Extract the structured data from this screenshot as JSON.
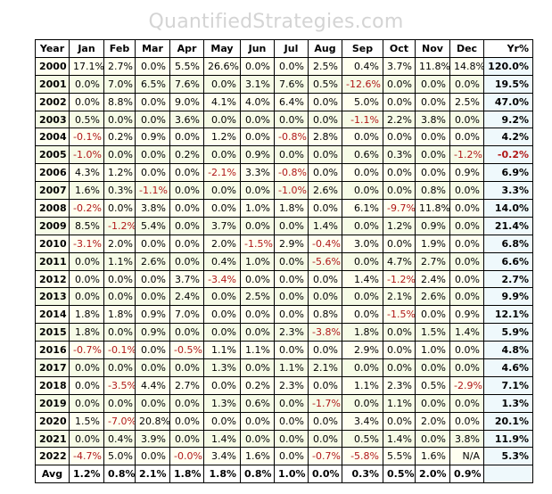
{
  "watermark": "QuantifiedStrategies.com",
  "colors": {
    "negative": "#b01818",
    "row_odd": "#fffff0",
    "row_even": "#f6fbe6",
    "total_col": "#eff9fc"
  },
  "columns": [
    "Year",
    "Jan",
    "Feb",
    "Mar",
    "Apr",
    "May",
    "Jun",
    "Jul",
    "Aug",
    "Sep",
    "Oct",
    "Nov",
    "Dec",
    "Yr%"
  ],
  "rows": [
    {
      "year": "2000",
      "values": [
        "17.1%",
        "2.7%",
        "0.0%",
        "5.5%",
        "26.6%",
        "0.0%",
        "0.0%",
        "2.5%",
        "0.4%",
        "3.7%",
        "11.8%",
        "14.8%",
        "120.0%"
      ]
    },
    {
      "year": "2001",
      "values": [
        "0.0%",
        "7.0%",
        "6.5%",
        "7.6%",
        "0.0%",
        "3.1%",
        "7.6%",
        "0.5%",
        "-12.6%",
        "0.0%",
        "0.0%",
        "0.0%",
        "19.5%"
      ]
    },
    {
      "year": "2002",
      "values": [
        "0.0%",
        "8.8%",
        "0.0%",
        "9.0%",
        "4.1%",
        "4.0%",
        "6.4%",
        "0.0%",
        "5.0%",
        "0.0%",
        "0.0%",
        "2.5%",
        "47.0%"
      ]
    },
    {
      "year": "2003",
      "values": [
        "0.5%",
        "0.0%",
        "0.0%",
        "3.6%",
        "0.0%",
        "0.0%",
        "0.0%",
        "0.0%",
        "-1.1%",
        "2.2%",
        "3.8%",
        "0.0%",
        "9.2%"
      ]
    },
    {
      "year": "2004",
      "values": [
        "-0.1%",
        "0.2%",
        "0.9%",
        "0.0%",
        "1.2%",
        "0.0%",
        "-0.8%",
        "2.8%",
        "0.0%",
        "0.0%",
        "0.0%",
        "0.0%",
        "4.2%"
      ]
    },
    {
      "year": "2005",
      "values": [
        "-1.0%",
        "0.0%",
        "0.0%",
        "0.2%",
        "0.0%",
        "0.9%",
        "0.0%",
        "0.0%",
        "0.6%",
        "0.3%",
        "0.0%",
        "-1.2%",
        "-0.2%"
      ]
    },
    {
      "year": "2006",
      "values": [
        "4.3%",
        "1.2%",
        "0.0%",
        "0.0%",
        "-2.1%",
        "3.3%",
        "-0.8%",
        "0.0%",
        "0.0%",
        "0.0%",
        "0.0%",
        "0.9%",
        "6.9%"
      ]
    },
    {
      "year": "2007",
      "values": [
        "1.6%",
        "0.3%",
        "-1.1%",
        "0.0%",
        "0.0%",
        "0.0%",
        "-1.0%",
        "2.6%",
        "0.0%",
        "0.0%",
        "0.8%",
        "0.0%",
        "3.3%"
      ]
    },
    {
      "year": "2008",
      "values": [
        "-0.2%",
        "0.0%",
        "3.8%",
        "0.0%",
        "0.0%",
        "1.0%",
        "1.8%",
        "0.0%",
        "6.1%",
        "-9.7%",
        "11.8%",
        "0.0%",
        "14.0%"
      ]
    },
    {
      "year": "2009",
      "values": [
        "8.5%",
        "-1.2%",
        "5.4%",
        "0.0%",
        "3.7%",
        "0.0%",
        "0.0%",
        "1.4%",
        "0.0%",
        "1.2%",
        "0.9%",
        "0.0%",
        "21.4%"
      ]
    },
    {
      "year": "2010",
      "values": [
        "-3.1%",
        "2.0%",
        "0.0%",
        "0.0%",
        "2.0%",
        "-1.5%",
        "2.9%",
        "-0.4%",
        "3.0%",
        "0.0%",
        "1.9%",
        "0.0%",
        "6.8%"
      ]
    },
    {
      "year": "2011",
      "values": [
        "0.0%",
        "1.1%",
        "2.6%",
        "0.0%",
        "0.4%",
        "1.0%",
        "0.0%",
        "-5.6%",
        "0.0%",
        "4.7%",
        "2.7%",
        "0.0%",
        "6.6%"
      ]
    },
    {
      "year": "2012",
      "values": [
        "0.0%",
        "0.0%",
        "0.0%",
        "3.7%",
        "-3.4%",
        "0.0%",
        "0.0%",
        "0.0%",
        "1.4%",
        "-1.2%",
        "2.4%",
        "0.0%",
        "2.7%"
      ]
    },
    {
      "year": "2013",
      "values": [
        "0.0%",
        "0.0%",
        "0.0%",
        "2.4%",
        "0.0%",
        "2.5%",
        "0.0%",
        "0.0%",
        "0.0%",
        "2.1%",
        "2.6%",
        "0.0%",
        "9.9%"
      ]
    },
    {
      "year": "2014",
      "values": [
        "1.8%",
        "1.8%",
        "0.9%",
        "7.0%",
        "0.0%",
        "0.0%",
        "0.0%",
        "0.8%",
        "0.0%",
        "-1.5%",
        "0.0%",
        "0.9%",
        "12.1%"
      ]
    },
    {
      "year": "2015",
      "values": [
        "1.8%",
        "0.0%",
        "0.9%",
        "0.0%",
        "0.0%",
        "0.0%",
        "2.3%",
        "-3.8%",
        "1.8%",
        "0.0%",
        "1.5%",
        "1.4%",
        "5.9%"
      ]
    },
    {
      "year": "2016",
      "values": [
        "-0.7%",
        "-0.1%",
        "0.0%",
        "-0.5%",
        "1.1%",
        "1.1%",
        "0.0%",
        "0.0%",
        "2.9%",
        "0.0%",
        "1.0%",
        "0.0%",
        "4.8%"
      ]
    },
    {
      "year": "2017",
      "values": [
        "0.0%",
        "0.0%",
        "0.0%",
        "0.0%",
        "1.3%",
        "0.0%",
        "1.1%",
        "2.1%",
        "0.0%",
        "0.0%",
        "0.0%",
        "0.0%",
        "4.6%"
      ]
    },
    {
      "year": "2018",
      "values": [
        "0.0%",
        "-3.5%",
        "4.4%",
        "2.7%",
        "0.0%",
        "0.2%",
        "2.3%",
        "0.0%",
        "1.1%",
        "2.3%",
        "0.5%",
        "-2.9%",
        "7.1%"
      ]
    },
    {
      "year": "2019",
      "values": [
        "0.0%",
        "0.0%",
        "0.0%",
        "0.0%",
        "1.3%",
        "0.6%",
        "0.0%",
        "-1.7%",
        "0.0%",
        "1.1%",
        "0.0%",
        "0.0%",
        "1.3%"
      ]
    },
    {
      "year": "2020",
      "values": [
        "1.5%",
        "-7.0%",
        "20.8%",
        "0.0%",
        "0.0%",
        "0.0%",
        "0.0%",
        "0.0%",
        "3.4%",
        "0.0%",
        "2.0%",
        "0.0%",
        "20.1%"
      ]
    },
    {
      "year": "2021",
      "values": [
        "0.0%",
        "0.4%",
        "3.9%",
        "0.0%",
        "1.4%",
        "0.0%",
        "0.0%",
        "0.0%",
        "0.5%",
        "1.4%",
        "0.0%",
        "3.8%",
        "11.9%"
      ]
    },
    {
      "year": "2022",
      "values": [
        "-4.7%",
        "5.0%",
        "0.0%",
        "-0.0%",
        "3.4%",
        "1.6%",
        "0.0%",
        "-0.7%",
        "-5.8%",
        "5.5%",
        "1.6%",
        "N/A",
        "5.3%"
      ]
    }
  ],
  "avg": {
    "label": "Avg",
    "values": [
      "1.2%",
      "0.8%",
      "2.1%",
      "1.8%",
      "1.8%",
      "0.8%",
      "1.0%",
      "0.0%",
      "0.3%",
      "0.5%",
      "2.0%",
      "0.9%",
      ""
    ]
  }
}
